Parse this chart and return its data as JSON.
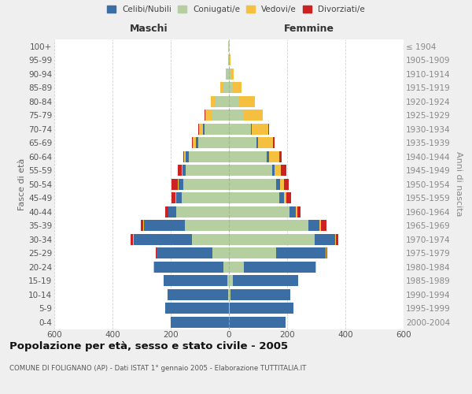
{
  "age_groups": [
    "100+",
    "95-99",
    "90-94",
    "85-89",
    "80-84",
    "75-79",
    "70-74",
    "65-69",
    "60-64",
    "55-59",
    "50-54",
    "45-49",
    "40-44",
    "35-39",
    "30-34",
    "25-29",
    "20-24",
    "15-19",
    "10-14",
    "5-9",
    "0-4"
  ],
  "birth_years": [
    "≤ 1904",
    "1905-1909",
    "1910-1914",
    "1915-1919",
    "1920-1924",
    "1925-1929",
    "1930-1934",
    "1935-1939",
    "1940-1944",
    "1945-1949",
    "1950-1954",
    "1955-1959",
    "1960-1964",
    "1965-1969",
    "1970-1974",
    "1975-1979",
    "1980-1984",
    "1985-1989",
    "1990-1994",
    "1995-1999",
    "2000-2004"
  ],
  "males_celibi": [
    0,
    0,
    0,
    0,
    0,
    0,
    3,
    8,
    10,
    12,
    15,
    18,
    25,
    140,
    200,
    190,
    240,
    220,
    210,
    220,
    200
  ],
  "males_coniugati": [
    2,
    3,
    8,
    20,
    45,
    60,
    85,
    105,
    138,
    148,
    158,
    163,
    182,
    152,
    128,
    58,
    18,
    5,
    2,
    0,
    0
  ],
  "males_vedovi": [
    0,
    1,
    4,
    10,
    18,
    22,
    15,
    10,
    5,
    3,
    2,
    2,
    2,
    2,
    2,
    2,
    2,
    0,
    0,
    0,
    0
  ],
  "males_divorziati": [
    0,
    0,
    0,
    0,
    0,
    2,
    3,
    3,
    5,
    12,
    22,
    14,
    10,
    8,
    8,
    2,
    0,
    0,
    0,
    0,
    0
  ],
  "females_nubili": [
    0,
    0,
    0,
    0,
    0,
    0,
    4,
    6,
    8,
    10,
    14,
    16,
    22,
    40,
    70,
    170,
    245,
    225,
    205,
    220,
    195
  ],
  "females_coniugate": [
    1,
    2,
    5,
    12,
    35,
    50,
    75,
    95,
    130,
    148,
    163,
    173,
    208,
    272,
    295,
    162,
    52,
    14,
    5,
    2,
    0
  ],
  "females_vedove": [
    0,
    3,
    12,
    32,
    55,
    65,
    55,
    50,
    35,
    20,
    12,
    8,
    5,
    3,
    2,
    2,
    2,
    0,
    0,
    0,
    0
  ],
  "females_divorziate": [
    0,
    0,
    0,
    0,
    0,
    2,
    3,
    5,
    8,
    18,
    16,
    16,
    10,
    20,
    10,
    5,
    2,
    0,
    0,
    0,
    0
  ],
  "color_celibi": "#3b6ea5",
  "color_coniugati": "#b5cfa0",
  "color_vedovi": "#f5c040",
  "color_divorziati": "#cc2222",
  "xlim": 600,
  "bar_height": 0.82,
  "title": "Popolazione per età, sesso e stato civile - 2005",
  "subtitle": "COMUNE DI FOLIGNANO (AP) - Dati ISTAT 1° gennaio 2005 - Elaborazione TUTTITALIA.IT",
  "label_maschi": "Maschi",
  "label_femmine": "Femmine",
  "ylabel_left": "Fasce di età",
  "ylabel_right": "Anni di nascita",
  "legend_labels": [
    "Celibi/Nubili",
    "Coniugati/e",
    "Vedovi/e",
    "Divorziati/e"
  ],
  "bg_color": "#efefef",
  "plot_bg_color": "#ffffff",
  "grid_color": "#cccccc"
}
